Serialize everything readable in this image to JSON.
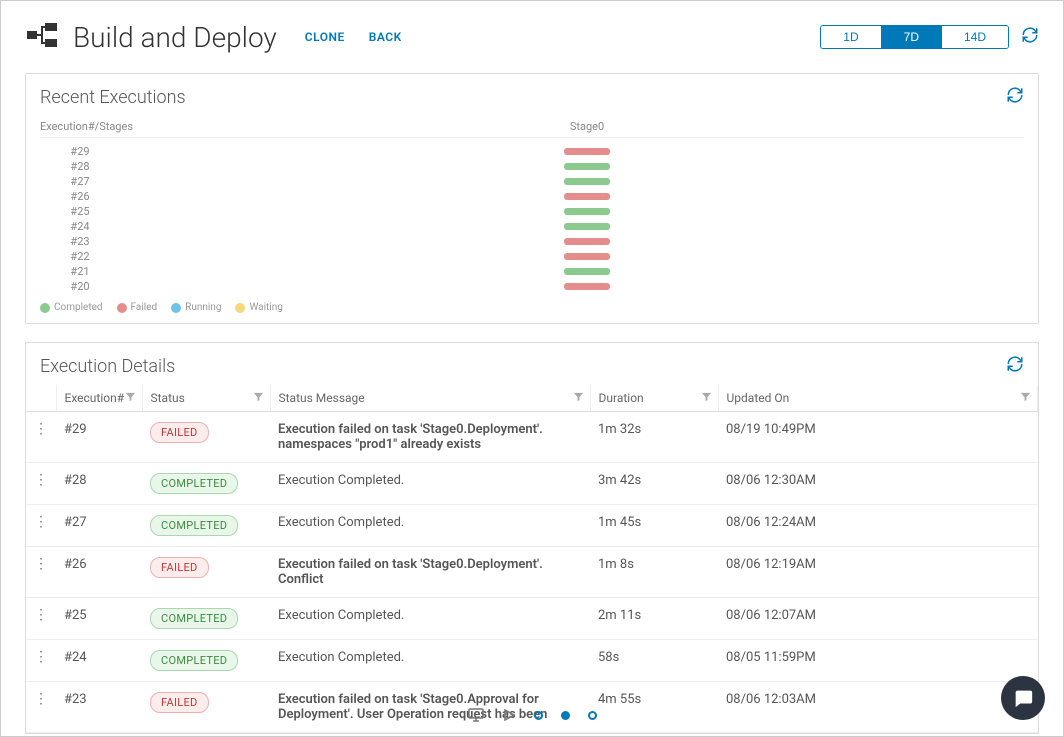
{
  "header": {
    "title": "Build and Deploy",
    "clone_label": "CLONE",
    "back_label": "BACK",
    "ranges": [
      {
        "label": "1D",
        "active": false
      },
      {
        "label": "7D",
        "active": true
      },
      {
        "label": "14D",
        "active": false
      }
    ]
  },
  "colors": {
    "accent": "#0079b8",
    "completed": "#8bc98e",
    "failed": "#e58c8c",
    "running": "#6fc3e8",
    "waiting": "#f3d97a",
    "pill_failed_bg": "#fdecec",
    "pill_failed_border": "#f0b0b0",
    "pill_failed_text": "#c23939",
    "pill_completed_bg": "#e9f7ea",
    "pill_completed_border": "#a8d8ab",
    "pill_completed_text": "#3b8c3f"
  },
  "recent": {
    "title": "Recent Executions",
    "head_label": "Execution#/Stages",
    "stage_label": "Stage0",
    "rows": [
      {
        "label": "#29",
        "status": "failed"
      },
      {
        "label": "#28",
        "status": "completed"
      },
      {
        "label": "#27",
        "status": "completed"
      },
      {
        "label": "#26",
        "status": "failed"
      },
      {
        "label": "#25",
        "status": "completed"
      },
      {
        "label": "#24",
        "status": "completed"
      },
      {
        "label": "#23",
        "status": "failed"
      },
      {
        "label": "#22",
        "status": "failed"
      },
      {
        "label": "#21",
        "status": "completed"
      },
      {
        "label": "#20",
        "status": "failed"
      }
    ],
    "legend": [
      {
        "label": "Completed",
        "color_key": "completed"
      },
      {
        "label": "Failed",
        "color_key": "failed"
      },
      {
        "label": "Running",
        "color_key": "running"
      },
      {
        "label": "Waiting",
        "color_key": "waiting"
      }
    ]
  },
  "details": {
    "title": "Execution Details",
    "columns": {
      "exec": "Execution#",
      "status": "Status",
      "msg": "Status Message",
      "dur": "Duration",
      "upd": "Updated On"
    },
    "rows": [
      {
        "exec": "#29",
        "status": "FAILED",
        "msg": "Execution failed on task 'Stage0.Deployment'. namespaces \"prod1\" already exists",
        "bold": true,
        "dur": "1m 32s",
        "upd": "08/19 10:49PM"
      },
      {
        "exec": "#28",
        "status": "COMPLETED",
        "msg": "Execution Completed.",
        "bold": false,
        "dur": "3m 42s",
        "upd": "08/06 12:30AM"
      },
      {
        "exec": "#27",
        "status": "COMPLETED",
        "msg": "Execution Completed.",
        "bold": false,
        "dur": "1m 45s",
        "upd": "08/06 12:24AM"
      },
      {
        "exec": "#26",
        "status": "FAILED",
        "msg": "Execution failed on task 'Stage0.Deployment'. Conflict",
        "bold": true,
        "dur": "1m 8s",
        "upd": "08/06 12:19AM"
      },
      {
        "exec": "#25",
        "status": "COMPLETED",
        "msg": "Execution Completed.",
        "bold": false,
        "dur": "2m 11s",
        "upd": "08/06 12:07AM"
      },
      {
        "exec": "#24",
        "status": "COMPLETED",
        "msg": "Execution Completed.",
        "bold": false,
        "dur": "58s",
        "upd": "08/05 11:59PM"
      },
      {
        "exec": "#23",
        "status": "FAILED",
        "msg": "Execution failed on task 'Stage0.Approval for Deployment'. User Operation request has been",
        "bold": true,
        "dur": "4m 55s",
        "upd": "08/06 12:03AM"
      }
    ]
  }
}
